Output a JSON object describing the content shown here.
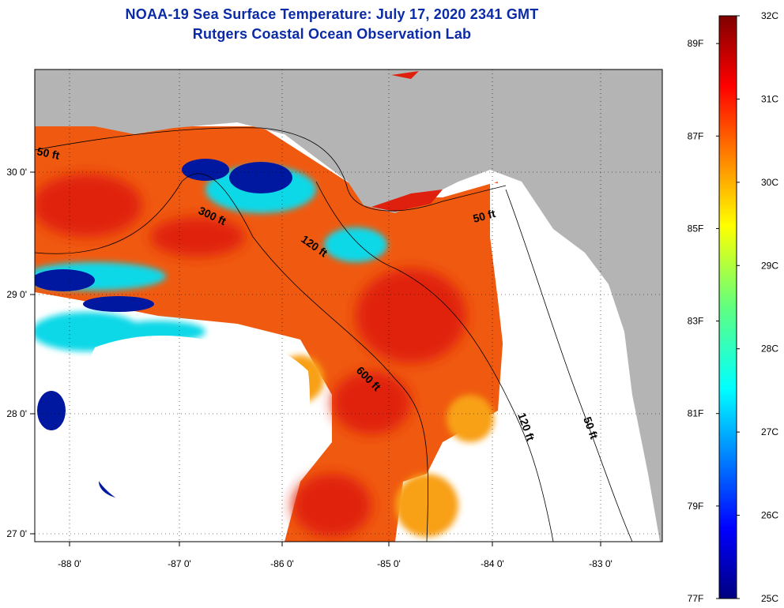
{
  "title_line1": "NOAA-19 Sea Surface Temperature:  July 17, 2020 2341 GMT",
  "title_line2": "Rutgers Coastal Ocean Observation Lab",
  "colors": {
    "land": "#b4b4b4",
    "cloud": "#ffffff",
    "water_warm": "#f05a10",
    "water_hot": "#e0200e",
    "water_mid": "#f8a018",
    "water_cool": "#10d8e8",
    "water_cold": "#0018a0"
  },
  "lon_ticks": [
    "-88 0'",
    "-87 0'",
    "-86 0'",
    "-85 0'",
    "-84 0'",
    "-83 0'"
  ],
  "lat_ticks": [
    "30 0'",
    "29 0'",
    "28 0'",
    "27 0'"
  ],
  "contour_labels": [
    "50 ft",
    "300 ft",
    "120 ft",
    "50 ft",
    "600 ft",
    "120 ft",
    "50 ft"
  ],
  "colorbar": {
    "min_c": 25,
    "max_c": 32,
    "celsius_labels": [
      "32C",
      "31C",
      "30C",
      "29C",
      "28C",
      "27C",
      "26C",
      "25C"
    ],
    "fahrenheit_labels": [
      "89F",
      "87F",
      "85F",
      "83F",
      "81F",
      "79F",
      "77F"
    ]
  }
}
